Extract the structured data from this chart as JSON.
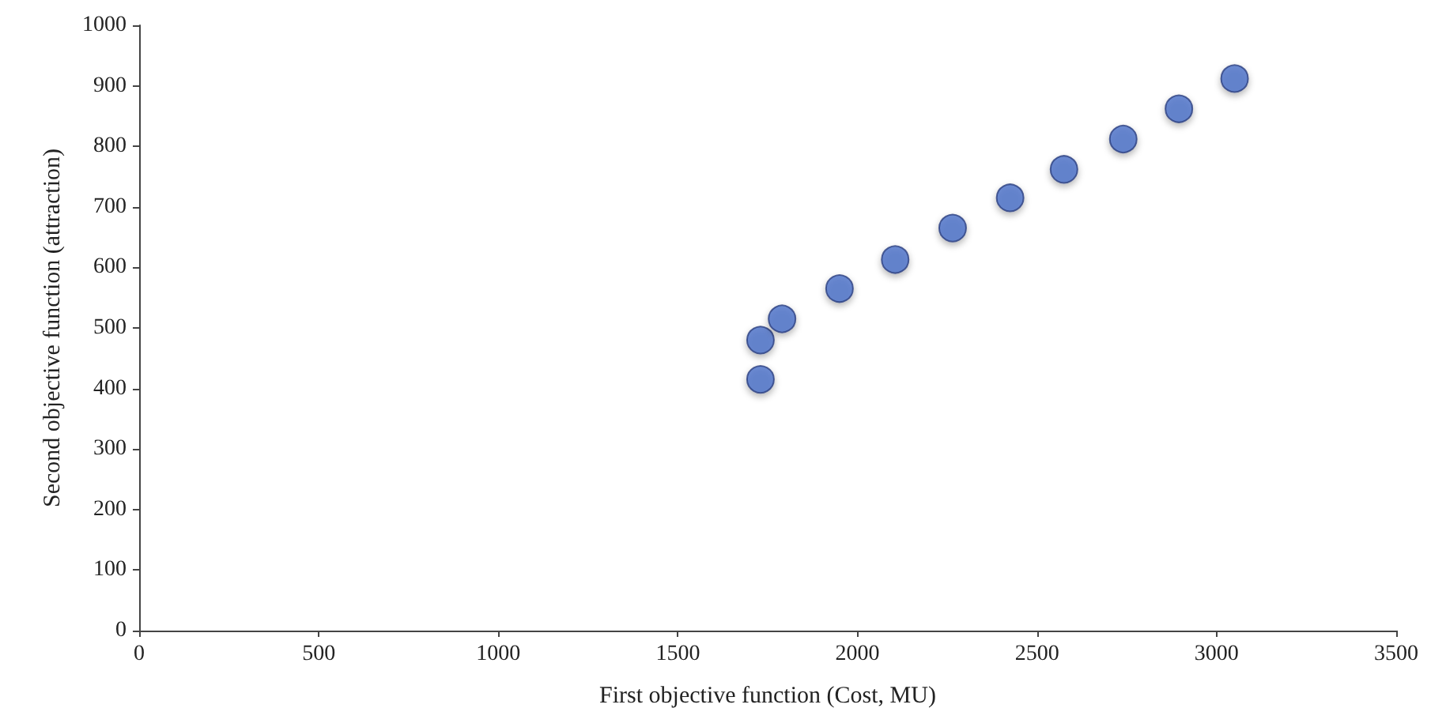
{
  "chart_data": {
    "type": "scatter",
    "xlabel": "First objective function (Cost, MU)",
    "ylabel": "Second objective function (attraction)",
    "x": [
      1730,
      1730,
      1790,
      1950,
      2105,
      2265,
      2425,
      2575,
      2740,
      2895,
      3050
    ],
    "values": [
      415,
      480,
      515,
      565,
      613,
      665,
      715,
      762,
      812,
      862,
      912
    ],
    "color": "#4a6fc8",
    "marker": "circle",
    "grid": false,
    "xlim": [
      0,
      3500
    ],
    "xticks": [
      0,
      500,
      1000,
      1500,
      2000,
      2500,
      3000,
      3500
    ],
    "ylim": [
      0,
      1000
    ],
    "yticks": [
      0,
      100,
      200,
      300,
      400,
      500,
      600,
      700,
      800,
      900,
      1000
    ]
  }
}
